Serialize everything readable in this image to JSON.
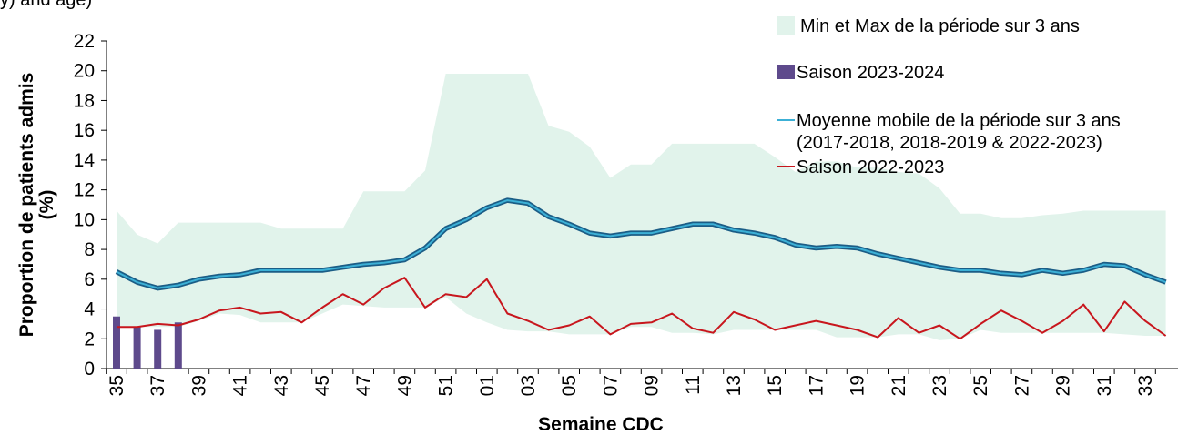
{
  "chart_data": {
    "type": "line",
    "title": "y) and age)",
    "x_label": "Semaine CDC",
    "y_label": "Proportion de patients admis (%)",
    "categories": [
      "35",
      null,
      "37",
      null,
      "39",
      null,
      "41",
      null,
      "43",
      null,
      "45",
      null,
      "47",
      null,
      "49",
      null,
      "51",
      null,
      "01",
      null,
      "03",
      null,
      "05",
      null,
      "07",
      null,
      "09",
      null,
      "11",
      null,
      "13",
      null,
      "15",
      null,
      "17",
      null,
      "19",
      null,
      "21",
      null,
      "23",
      null,
      "25",
      null,
      "27",
      null,
      "29",
      null,
      "31",
      null,
      "33",
      null
    ],
    "ylim": [
      0,
      22
    ],
    "yticks": [
      0,
      2,
      4,
      6,
      8,
      10,
      12,
      14,
      16,
      18,
      20,
      22
    ],
    "legend": "top-right",
    "series": [
      {
        "name": "Min et Max de la période sur 3 ans",
        "type": "area",
        "color": "#e1f3eb",
        "high": [
          10.6,
          9.0,
          8.4,
          9.8,
          9.8,
          9.8,
          9.8,
          9.8,
          9.4,
          9.4,
          9.4,
          9.4,
          11.9,
          11.9,
          11.9,
          13.3,
          19.8,
          19.8,
          19.8,
          19.8,
          19.8,
          16.3,
          15.9,
          14.9,
          12.8,
          13.7,
          13.7,
          15.1,
          15.1,
          15.1,
          15.1,
          15.1,
          14.2,
          13.2,
          13.9,
          13.9,
          13.5,
          13.5,
          13.2,
          13.1,
          12.1,
          10.4,
          10.4,
          10.1,
          10.1,
          10.3,
          10.4,
          10.6,
          10.6,
          10.6,
          10.6,
          10.6
        ],
        "low": [
          2.8,
          2.8,
          2.8,
          2.8,
          3.2,
          3.7,
          3.6,
          3.1,
          3.1,
          3.1,
          3.7,
          4.3,
          4.2,
          4.1,
          4.1,
          4.1,
          4.8,
          3.7,
          3.1,
          2.6,
          2.5,
          2.5,
          2.3,
          2.3,
          2.3,
          2.8,
          2.8,
          2.4,
          2.4,
          2.3,
          2.6,
          2.6,
          2.6,
          2.6,
          2.6,
          2.1,
          2.1,
          2.1,
          2.3,
          2.3,
          1.9,
          2.0,
          2.6,
          2.4,
          2.4,
          2.4,
          2.4,
          2.4,
          2.4,
          2.3,
          2.2,
          2.2
        ]
      },
      {
        "name": "Saison 2023-2024",
        "type": "bar",
        "color": "#5e4a8c",
        "values": [
          3.5,
          2.8,
          2.6,
          3.1,
          null,
          null,
          null,
          null,
          null,
          null,
          null,
          null,
          null,
          null,
          null,
          null,
          null,
          null,
          null,
          null,
          null,
          null,
          null,
          null,
          null,
          null,
          null,
          null,
          null,
          null,
          null,
          null,
          null,
          null,
          null,
          null,
          null,
          null,
          null,
          null,
          null,
          null,
          null,
          null,
          null,
          null,
          null,
          null,
          null,
          null,
          null,
          null
        ]
      },
      {
        "name": "Moyenne mobile de la période sur 3 ans (2017-2018, 2018-2019 & 2022-2023)",
        "type": "line",
        "color": "#3cb0d6",
        "values": [
          6.5,
          5.8,
          5.4,
          5.6,
          6.0,
          6.2,
          6.3,
          6.6,
          6.6,
          6.6,
          6.6,
          6.8,
          7.0,
          7.1,
          7.3,
          8.1,
          9.4,
          10.0,
          10.8,
          11.3,
          11.1,
          10.2,
          9.7,
          9.1,
          8.9,
          9.1,
          9.1,
          9.4,
          9.7,
          9.7,
          9.3,
          9.1,
          8.8,
          8.3,
          8.1,
          8.2,
          8.1,
          7.7,
          7.4,
          7.1,
          6.8,
          6.6,
          6.6,
          6.4,
          6.3,
          6.6,
          6.4,
          6.6,
          7.0,
          6.9,
          6.3,
          5.8
        ]
      },
      {
        "name": "Saison 2022-2023",
        "type": "line",
        "color": "#c8161d",
        "values": [
          2.8,
          2.8,
          3.0,
          2.9,
          3.3,
          3.9,
          4.1,
          3.7,
          3.8,
          3.1,
          4.1,
          5.0,
          4.3,
          5.4,
          6.1,
          4.1,
          5.0,
          4.8,
          6.0,
          3.7,
          3.2,
          2.6,
          2.9,
          3.5,
          2.3,
          3.0,
          3.1,
          3.7,
          2.7,
          2.4,
          3.8,
          3.3,
          2.6,
          2.9,
          3.2,
          2.9,
          2.6,
          2.1,
          3.4,
          2.4,
          2.9,
          2.0,
          3.0,
          3.9,
          3.2,
          2.4,
          3.2,
          4.3,
          2.5,
          4.5,
          3.2,
          2.2
        ]
      }
    ]
  }
}
